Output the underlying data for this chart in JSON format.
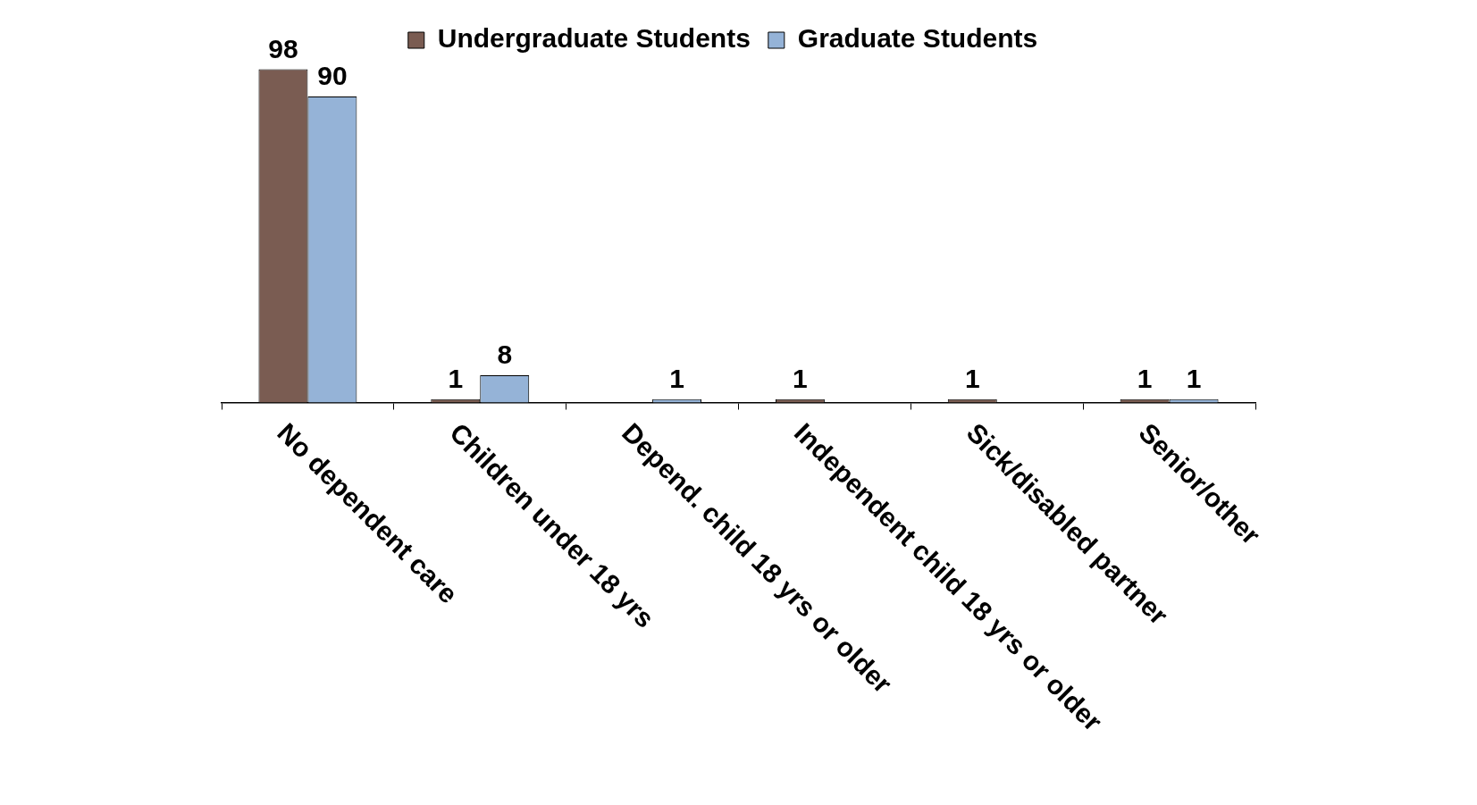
{
  "chart_data": {
    "type": "bar",
    "categories": [
      "No dependent care",
      "Children under 18 yrs",
      "Depend. child 18 yrs or older",
      "Independent child 18 yrs or older",
      "Sick/disabled partner",
      "Senior/other"
    ],
    "series": [
      {
        "name": "Undergraduate Students",
        "color": "#7a5c52",
        "values": [
          98,
          1,
          null,
          1,
          1,
          1
        ]
      },
      {
        "name": "Graduate Students",
        "color": "#95b3d7",
        "values": [
          90,
          8,
          1,
          null,
          null,
          1
        ]
      }
    ],
    "data_labels": true,
    "legend": "top",
    "grid": false
  }
}
